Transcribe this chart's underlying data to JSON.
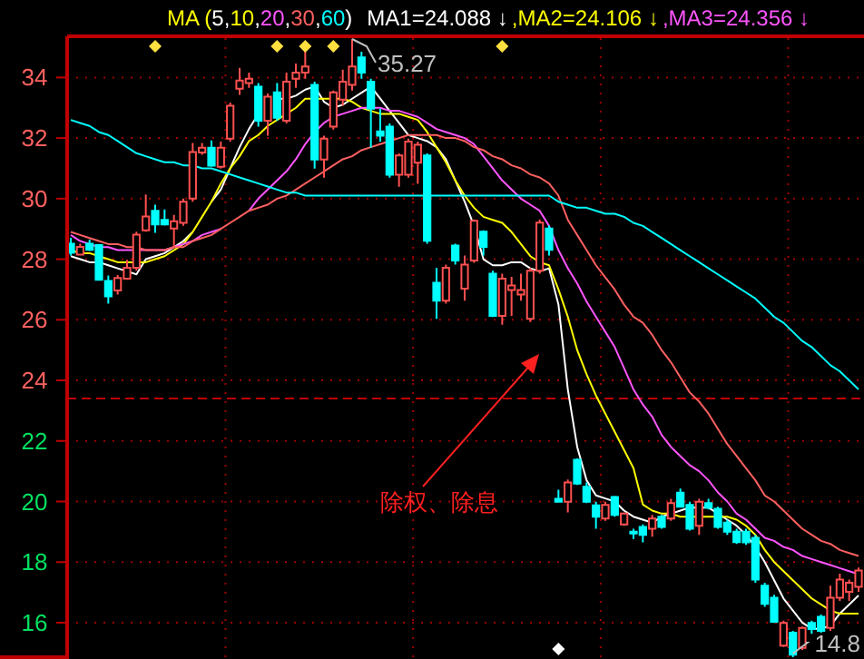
{
  "chart_data": {
    "type": "candlestick",
    "legend_title": "MA (5,10,20,30,60)",
    "categories": [
      null,
      null,
      null,
      null,
      null,
      null,
      null,
      null,
      null,
      null,
      null,
      null,
      null,
      null,
      null,
      null,
      null,
      null,
      null,
      null,
      null,
      null,
      null,
      null,
      null,
      null,
      null,
      null,
      null,
      null,
      null,
      null,
      null,
      null,
      null,
      null,
      null,
      null,
      null,
      null,
      null,
      null,
      null,
      null,
      null,
      null,
      null,
      null,
      null,
      null,
      null,
      null,
      null,
      null,
      null,
      null,
      null,
      null,
      null,
      null,
      null,
      null,
      null,
      null,
      null,
      null,
      null,
      null,
      null,
      null,
      null,
      null,
      null,
      null,
      null,
      null,
      null,
      null,
      null,
      null,
      null,
      null,
      null,
      null,
      null
    ],
    "tick_labels": "y",
    "ylim": [
      14.8,
      35.3
    ],
    "yticks": [
      16,
      18,
      20,
      22,
      24,
      26,
      28,
      30,
      32,
      34
    ],
    "grid": true,
    "ohlc": [
      [
        28.51,
        28.71,
        28.12,
        28.21
      ],
      [
        28.15,
        28.51,
        28.12,
        28.41
      ],
      [
        28.51,
        28.65,
        28.27,
        28.31
      ],
      [
        28.47,
        28.5,
        27.3,
        27.32
      ],
      [
        27.28,
        27.46,
        26.53,
        26.77
      ],
      [
        26.97,
        27.48,
        26.83,
        27.38
      ],
      [
        27.36,
        27.98,
        27.32,
        27.72
      ],
      [
        27.72,
        28.91,
        27.62,
        28.81
      ],
      [
        28.95,
        30.14,
        28.91,
        29.41
      ],
      [
        29.6,
        29.8,
        28.87,
        29.15
      ],
      [
        29.3,
        29.64,
        29.11,
        29.15
      ],
      [
        29.01,
        29.46,
        28.41,
        29.25
      ],
      [
        29.2,
        30.0,
        29.1,
        29.9
      ],
      [
        30.0,
        31.84,
        29.9,
        31.54
      ],
      [
        31.52,
        31.84,
        31.45,
        31.68
      ],
      [
        31.68,
        31.92,
        31.05,
        31.09
      ],
      [
        31.05,
        31.88,
        30.99,
        31.68
      ],
      [
        31.98,
        33.17,
        31.88,
        33.07
      ],
      [
        33.63,
        34.32,
        33.43,
        33.9
      ],
      [
        33.82,
        34.16,
        33.66,
        33.96
      ],
      [
        33.7,
        33.82,
        32.38,
        32.57
      ],
      [
        32.57,
        33.47,
        32.08,
        33.37
      ],
      [
        33.51,
        33.82,
        32.57,
        32.67
      ],
      [
        32.57,
        34.16,
        32.48,
        33.86
      ],
      [
        33.96,
        34.46,
        33.66,
        34.16
      ],
      [
        34.16,
        34.85,
        33.96,
        34.36
      ],
      [
        33.76,
        33.86,
        30.99,
        31.29
      ],
      [
        31.29,
        32.08,
        30.69,
        31.98
      ],
      [
        32.38,
        33.57,
        32.28,
        33.51
      ],
      [
        33.27,
        34.26,
        33.07,
        33.86
      ],
      [
        33.76,
        35.27,
        33.57,
        34.36
      ],
      [
        34.66,
        34.85,
        33.96,
        34.16
      ],
      [
        33.86,
        33.96,
        31.68,
        32.97
      ],
      [
        32.22,
        32.97,
        31.88,
        32.08
      ],
      [
        32.38,
        32.48,
        30.69,
        30.79
      ],
      [
        30.79,
        31.49,
        30.39,
        31.43
      ],
      [
        30.79,
        31.98,
        30.69,
        31.88
      ],
      [
        31.19,
        31.88,
        30.49,
        31.78
      ],
      [
        31.43,
        31.49,
        28.51,
        28.61
      ],
      [
        27.22,
        27.72,
        26.03,
        26.63
      ],
      [
        26.63,
        27.82,
        26.53,
        27.72
      ],
      [
        28.45,
        28.51,
        27.82,
        27.96
      ],
      [
        27.03,
        28.12,
        26.63,
        27.82
      ],
      [
        27.96,
        29.31,
        27.88,
        29.27
      ],
      [
        28.91,
        28.95,
        28.12,
        28.41
      ],
      [
        27.52,
        27.62,
        26.09,
        26.13
      ],
      [
        26.13,
        27.52,
        25.84,
        27.36
      ],
      [
        26.98,
        27.42,
        26.13,
        27.13
      ],
      [
        26.83,
        27.52,
        26.63,
        26.98
      ],
      [
        26.03,
        27.72,
        25.93,
        27.62
      ],
      [
        27.62,
        29.31,
        27.52,
        29.21
      ],
      [
        29.01,
        29.11,
        28.12,
        28.31
      ],
      [
        20.09,
        20.39,
        19.99,
        19.99
      ],
      [
        19.99,
        20.73,
        19.64,
        20.63
      ],
      [
        21.38,
        21.42,
        20.55,
        20.59
      ],
      [
        20.49,
        20.63,
        19.95,
        19.99
      ],
      [
        19.87,
        19.99,
        19.1,
        19.5
      ],
      [
        19.44,
        19.99,
        19.36,
        19.89
      ],
      [
        20.15,
        20.19,
        19.5,
        19.56
      ],
      [
        19.24,
        19.64,
        19.2,
        19.6
      ],
      [
        19.0,
        19.1,
        18.76,
        18.96
      ],
      [
        19.16,
        19.24,
        18.65,
        18.9
      ],
      [
        19.1,
        19.56,
        18.84,
        19.44
      ],
      [
        19.5,
        19.56,
        19.1,
        19.16
      ],
      [
        19.44,
        20.09,
        19.36,
        19.95
      ],
      [
        20.29,
        20.43,
        19.8,
        19.83
      ],
      [
        19.89,
        19.99,
        19.04,
        19.1
      ],
      [
        19.2,
        20.09,
        18.9,
        19.99
      ],
      [
        19.95,
        20.09,
        19.74,
        19.8
      ],
      [
        19.76,
        19.83,
        19.1,
        19.16
      ],
      [
        19.3,
        19.4,
        18.9,
        19.0
      ],
      [
        19.0,
        19.1,
        18.6,
        18.66
      ],
      [
        19.0,
        19.1,
        18.57,
        18.65
      ],
      [
        18.8,
        18.9,
        17.32,
        17.42
      ],
      [
        17.22,
        17.32,
        16.52,
        16.62
      ],
      [
        16.82,
        16.92,
        15.99,
        16.03
      ],
      [
        15.24,
        16.07,
        15.2,
        15.99
      ],
      [
        15.67,
        15.73,
        14.86,
        14.94
      ],
      [
        15.17,
        15.87,
        15.1,
        15.83
      ],
      [
        15.99,
        16.07,
        15.63,
        15.79
      ],
      [
        16.19,
        16.27,
        15.67,
        15.73
      ],
      [
        15.83,
        17.22,
        15.73,
        16.82
      ],
      [
        16.82,
        17.62,
        16.72,
        17.42
      ],
      [
        17.02,
        17.42,
        16.72,
        17.32
      ],
      [
        17.18,
        17.82,
        17.02,
        17.72
      ]
    ],
    "series": [
      {
        "type": "line",
        "color": "#ffffff",
        "values": [
          28.1,
          28.0,
          27.9,
          27.9,
          27.8,
          27.7,
          27.6,
          27.5,
          28.0,
          28.1,
          28.2,
          28.4,
          28.6,
          28.9,
          null,
          29.9,
          30.3,
          31.0,
          31.7,
          32.3,
          32.8,
          null,
          33.3,
          33.3,
          33.4,
          33.6,
          33.7,
          33.2,
          33.0,
          33.1,
          33.3,
          33.5,
          33.7,
          33.3,
          32.9,
          32.5,
          32.1,
          32.0,
          31.9,
          31.7,
          31.3,
          30.6,
          29.9,
          29.1,
          28.0,
          27.8,
          27.8,
          27.9,
          27.9,
          27.7,
          27.6,
          27.7,
          26.5,
          23.7,
          21.8,
          20.7,
          20.2,
          20.1,
          20.0,
          19.7,
          19.5,
          19.4,
          19.3,
          19.5,
          19.6,
          19.7,
          19.8,
          19.8,
          19.8,
          19.6,
          19.4,
          19.2,
          18.9,
          18.5,
          18.0,
          17.4,
          16.8,
          16.4,
          16.0,
          15.8,
          15.8,
          15.9,
          16.3,
          16.6,
          16.9
        ]
      },
      {
        "type": "line",
        "color": "#ffff00",
        "values": [
          28.3,
          28.2,
          28.2,
          28.1,
          28.0,
          27.9,
          27.9,
          27.9,
          27.9,
          28.0,
          28.1,
          28.3,
          28.5,
          28.9,
          29.4,
          29.9,
          30.5,
          31.0,
          31.4,
          31.9,
          32.1,
          32.4,
          32.6,
          32.8,
          33.0,
          33.3,
          33.3,
          33.3,
          33.3,
          33.3,
          33.2,
          33.0,
          32.9,
          32.8,
          32.8,
          32.8,
          32.7,
          32.6,
          32.2,
          31.7,
          31.2,
          30.6,
          30.1,
          29.7,
          29.4,
          29.3,
          29.2,
          28.9,
          28.5,
          28.1,
          27.9,
          27.8,
          27.0,
          26.1,
          25.0,
          24.2,
          23.5,
          22.9,
          22.3,
          21.7,
          21.1,
          19.9,
          19.7,
          19.6,
          19.6,
          19.5,
          19.5,
          19.5,
          19.5,
          19.5,
          19.5,
          19.4,
          19.2,
          18.9,
          18.4,
          18.0,
          17.7,
          17.4,
          17.1,
          16.8,
          16.6,
          16.4,
          16.3,
          16.3,
          16.3
        ]
      },
      {
        "type": "line",
        "color": "#ff55ff",
        "values": [
          28.8,
          28.6,
          28.5,
          28.4,
          28.4,
          28.3,
          28.3,
          28.3,
          28.3,
          28.3,
          28.3,
          28.4,
          28.5,
          28.6,
          28.8,
          28.9,
          29.0,
          null,
          null,
          29.6,
          30.0,
          30.3,
          30.6,
          30.9,
          31.3,
          31.8,
          32.2,
          32.5,
          32.7,
          32.8,
          32.9,
          33.0,
          33.0,
          33.0,
          32.9,
          32.9,
          32.8,
          32.7,
          32.5,
          32.3,
          32.2,
          32.1,
          32.0,
          31.8,
          31.4,
          31.0,
          30.6,
          30.3,
          30.0,
          29.8,
          29.6,
          29.1,
          28.3,
          27.7,
          27.2,
          26.6,
          26.1,
          25.6,
          25.1,
          24.4,
          23.7,
          23.2,
          22.8,
          22.2,
          21.8,
          21.5,
          21.2,
          21.0,
          20.7,
          20.3,
          20.0,
          19.6,
          19.4,
          19.1,
          18.8,
          18.7,
          18.5,
          18.4,
          18.2,
          18.1,
          18.0,
          17.9,
          17.8,
          17.7,
          17.6
        ]
      },
      {
        "type": "line",
        "color": "#ff6060",
        "values": [
          28.9,
          28.8,
          28.7,
          28.6,
          28.5,
          28.5,
          28.4,
          28.4,
          28.3,
          28.3,
          28.3,
          28.4,
          28.4,
          28.6,
          28.7,
          28.8,
          29.0,
          29.2,
          29.4,
          29.6,
          29.7,
          29.8,
          30.0,
          30.1,
          30.3,
          30.5,
          30.7,
          30.9,
          31.1,
          31.3,
          31.4,
          31.6,
          31.7,
          31.8,
          31.9,
          32.0,
          32.1,
          32.1,
          32.1,
          32.1,
          32.0,
          32.0,
          31.9,
          31.7,
          31.6,
          31.4,
          31.3,
          31.1,
          31.0,
          30.8,
          30.7,
          30.5,
          30.1,
          29.3,
          28.8,
          28.3,
          27.8,
          27.4,
          27.0,
          26.5,
          26.1,
          25.9,
          25.5,
          25.0,
          24.6,
          24.1,
          23.6,
          23.3,
          22.9,
          22.4,
          21.9,
          21.5,
          21.1,
          20.7,
          20.2,
          20.0,
          19.7,
          19.4,
          19.1,
          18.9,
          18.7,
          18.6,
          18.4,
          18.3,
          18.2
        ]
      },
      {
        "type": "line",
        "color": "#00ffff",
        "values": [
          32.6,
          32.5,
          32.4,
          32.2,
          32.1,
          31.9,
          31.7,
          31.5,
          31.4,
          31.3,
          31.2,
          31.2,
          31.1,
          31.1,
          31.0,
          31.0,
          30.9,
          30.8,
          30.7,
          30.6,
          30.5,
          30.4,
          30.3,
          30.2,
          30.2,
          30.1,
          30.1,
          30.1,
          30.1,
          30.1,
          30.1,
          30.1,
          30.1,
          30.1,
          30.1,
          30.1,
          30.1,
          30.1,
          30.1,
          30.1,
          30.1,
          30.1,
          30.1,
          30.1,
          30.1,
          30.1,
          30.1,
          30.1,
          30.1,
          30.1,
          30.1,
          30.1,
          29.9,
          29.8,
          29.7,
          29.7,
          29.6,
          29.5,
          29.5,
          29.4,
          29.2,
          29.1,
          28.9,
          28.7,
          28.5,
          28.3,
          28.1,
          27.9,
          27.7,
          27.5,
          27.3,
          27.1,
          26.9,
          26.7,
          26.4,
          26.1,
          25.9,
          25.6,
          25.3,
          25.1,
          24.8,
          24.5,
          24.3,
          24.0,
          23.7
        ]
      }
    ],
    "ref_lines": [
      {
        "axis": "y",
        "value": 23.4,
        "color": "#c00000",
        "line_style": "dashed"
      }
    ],
    "annotations": [
      "MA1=24.088 ↓",
      ",MA2=24.106 ↓",
      ",MA3=24.356 ↓",
      "35.27",
      "14.8",
      "除权、除息"
    ]
  }
}
